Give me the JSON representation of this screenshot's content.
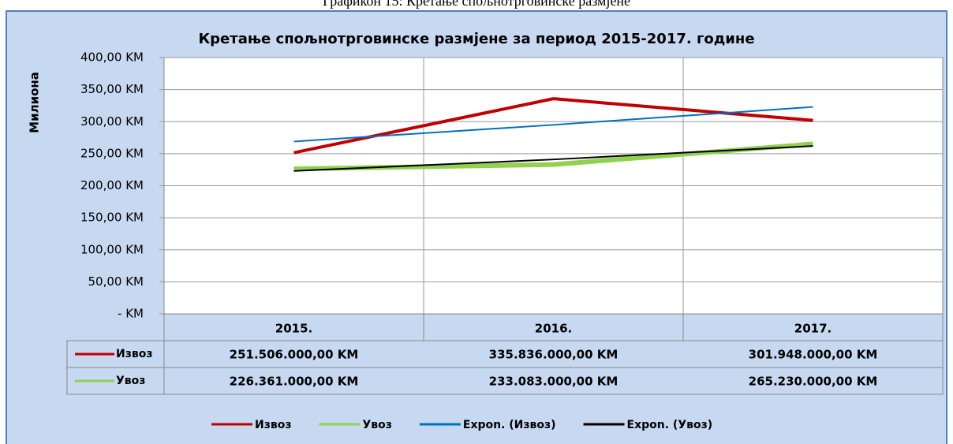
{
  "caption": "Графикон 15: Кретање спољнотрговинске размјене",
  "chart_data": {
    "type": "line",
    "title": "Кретање спољнотрговинске  размјене за период 2015-2017. године",
    "ylabel": "Милиона",
    "categories": [
      "2015.",
      "2016.",
      "2017."
    ],
    "series": [
      {
        "name": "Извоз",
        "color": "#c00000",
        "values": [
          251.506,
          335.836,
          301.948
        ],
        "value_labels": [
          "251.506.000,00 KM",
          "335.836.000,00 KM",
          "301.948.000,00 KM"
        ]
      },
      {
        "name": "Увоз",
        "color": "#92d050",
        "values": [
          226.361,
          233.083,
          265.23
        ],
        "value_labels": [
          "226.361.000,00 KM",
          "233.083.000,00 KM",
          "265.230.000,00 KM"
        ]
      },
      {
        "name": "Expon. (Извоз)",
        "color": "#0070c0",
        "values": [
          269,
          295,
          323
        ]
      },
      {
        "name": "Expon. (Увоз)",
        "color": "#000000",
        "values": [
          223,
          241,
          262
        ]
      }
    ],
    "ylim": [
      0,
      400
    ],
    "yticks": [
      {
        "value": 0,
        "label": "-  KM"
      },
      {
        "value": 50,
        "label": "50,00 KM"
      },
      {
        "value": 100,
        "label": "100,00 KM"
      },
      {
        "value": 150,
        "label": "150,00 KM"
      },
      {
        "value": 200,
        "label": "200,00 KM"
      },
      {
        "value": 250,
        "label": "250,00 KM"
      },
      {
        "value": 300,
        "label": "300,00 KM"
      },
      {
        "value": 350,
        "label": "350,00 KM"
      },
      {
        "value": 400,
        "label": "400,00 KM"
      }
    ],
    "grid": true,
    "data_table": true,
    "legend": "bottom"
  }
}
